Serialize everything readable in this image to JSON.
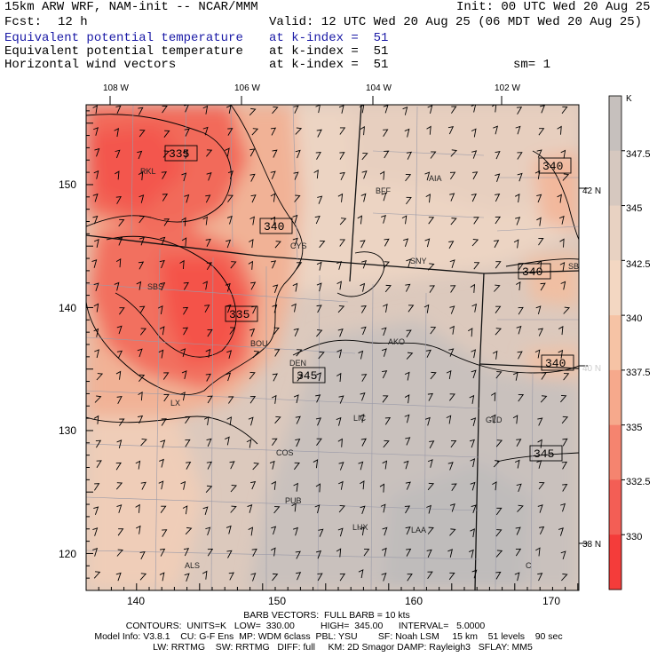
{
  "header": {
    "title_left": "15km ARW WRF, NAM-init -- NCAR/MMM",
    "init": "Init: 00 UTC Wed 20 Aug 25",
    "fcst_label": "Fcst:",
    "fcst_value": "12 h",
    "valid": "Valid: 12 UTC Wed 20 Aug 25 (06 MDT Wed 20 Aug 25)",
    "field1": "Equivalent potential temperature",
    "field1_level": "at k-index =  51",
    "field2": "Equivalent potential temperature",
    "field2_level": "at k-index =  51",
    "field3": "Horizontal wind vectors",
    "field3_level": "at k-index =  51",
    "smooth": "sm= 1"
  },
  "top_axis": [
    "108 W",
    "106 W",
    "104 W",
    "102 W"
  ],
  "left_axis": [
    "150",
    "140",
    "130",
    "120"
  ],
  "bottom_axis": [
    "140",
    "150",
    "160",
    "170"
  ],
  "right_axis": [
    "42 N",
    "40 N",
    "38 N"
  ],
  "stations": [
    "RKL",
    "BFF",
    "AIA",
    "CYS",
    "SNY",
    "SBS",
    "BOU",
    "AKO",
    "DEN",
    "LX",
    "LIC",
    "GLD",
    "COS",
    "PUB",
    "LHX",
    "LAA",
    "ALS",
    "C",
    "SB"
  ],
  "contour_labels": [
    "335",
    "340",
    "335",
    "345",
    "340",
    "340",
    "340",
    "345"
  ],
  "colorbar": {
    "unit": "K",
    "ticks": [
      "347.5",
      "345",
      "342.5",
      "340",
      "337.5",
      "335",
      "332.5",
      "330"
    ],
    "colors": [
      "#c6c0bd",
      "#d6c8bf",
      "#e8d2c2",
      "#f3d7c2",
      "#f6c3a5",
      "#f6a98c",
      "#f5846f",
      "#f35e55",
      "#f43c3a"
    ]
  },
  "footer": {
    "barb": "BARB VECTORS:  FULL BARB = 10 kts",
    "contours": "CONTOURS:  UNITS=K   LOW=  330.00          HIGH=  345.00      INTERVAL=   5.0000",
    "model1": "Model Info: V3.8.1    CU: G-F Ens  MP: WDM 6class  PBL: YSU        SF: Noah LSM     15 km    51 levels    90 sec",
    "model2": "LW: RRTMG    SW: RRTMG   DIFF: full     KM: 2D Smagor DAMP: Rayleigh3   SFLAY: MM5"
  }
}
